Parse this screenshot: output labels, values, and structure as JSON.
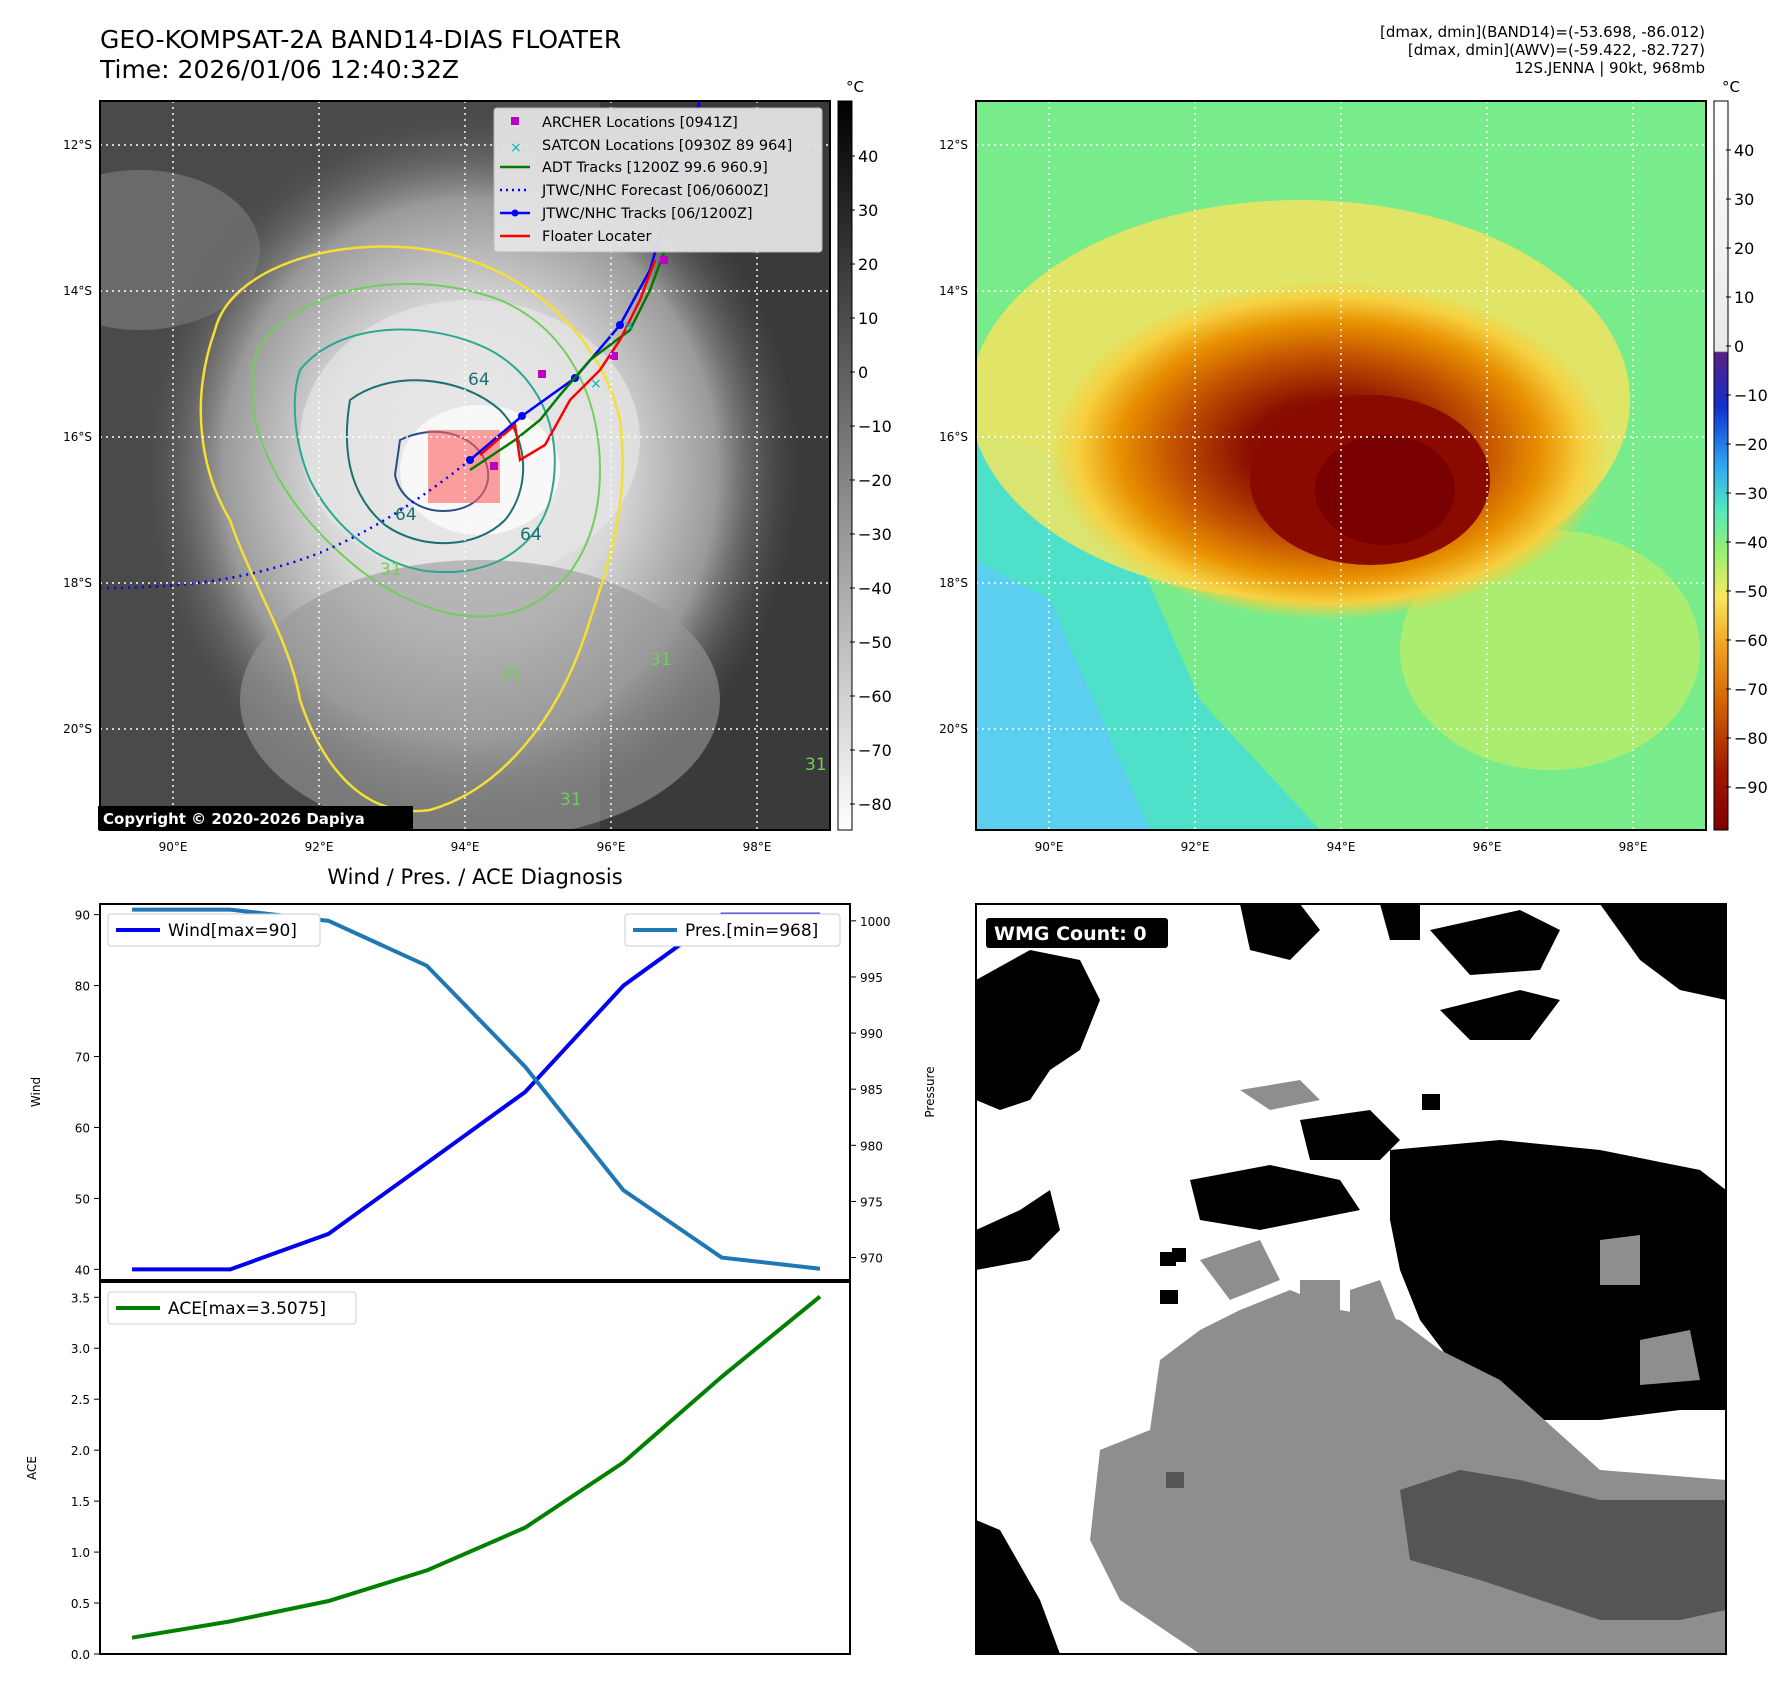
{
  "header": {
    "title_line1": "GEO-KOMPSAT-2A BAND14-DIAS FLOATER",
    "title_line2": "Time: 2026/01/06 12:40:32Z",
    "info_line1": "[dmax, dmin](BAND14)=(-53.698, -86.012)",
    "info_line2": "[dmax, dmin](AWV)=(-59.422, -82.727)",
    "info_line3": "12S.JENNA | 90kt, 968mb"
  },
  "map": {
    "lon_ticks": [
      "90°E",
      "92°E",
      "94°E",
      "96°E",
      "98°E"
    ],
    "lat_ticks": [
      "12°S",
      "14°S",
      "16°S",
      "18°S",
      "20°S"
    ],
    "copyright": "Copyright © 2020-2026 Dapiya",
    "contour_labels": [
      "64",
      "64",
      "64",
      "31",
      "31",
      "31",
      "31",
      "31"
    ],
    "legend": [
      {
        "label": "ARCHER Locations [0941Z]",
        "color": "#c000c0",
        "marker": "square"
      },
      {
        "label": "SATCON Locations [0930Z 89 964]",
        "color": "#00b8b8",
        "marker": "x"
      },
      {
        "label": "ADT Tracks [1200Z 99.6 960.9]",
        "color": "#007a00",
        "marker": "line"
      },
      {
        "label": "JTWC/NHC Forecast [06/0600Z]",
        "color": "#0000ff",
        "marker": "dotted"
      },
      {
        "label": "JTWC/NHC Tracks [06/1200Z]",
        "color": "#0000ff",
        "marker": "line-dot"
      },
      {
        "label": "Floater Locater",
        "color": "#ff0000",
        "marker": "line"
      }
    ]
  },
  "colorbar_ir": {
    "unit": "°C",
    "ticks": [
      "40",
      "30",
      "20",
      "10",
      "0",
      "−10",
      "−20",
      "−30",
      "−40",
      "−50",
      "−60",
      "−70",
      "−80"
    ]
  },
  "colorbar_awv": {
    "unit": "°C",
    "ticks": [
      "40",
      "30",
      "20",
      "10",
      "0",
      "−10",
      "−20",
      "−30",
      "−40",
      "−50",
      "−60",
      "−70",
      "−80",
      "−90"
    ]
  },
  "wmg": {
    "label": "WMG Count: 0"
  },
  "chart_data": [
    {
      "type": "line",
      "title": "Wind / Pres. / ACE Diagnosis",
      "ylabel": "Wind",
      "ylabel_right": "Pressure",
      "ylim": [
        38.5,
        91.5
      ],
      "ylim_right": [
        968.0,
        1001.5
      ],
      "yticks": [
        40,
        50,
        60,
        70,
        80,
        90
      ],
      "yticks_right": [
        970,
        975,
        980,
        985,
        990,
        995,
        1000
      ],
      "x": [
        0,
        1,
        2,
        3,
        4,
        5,
        6,
        7
      ],
      "series": [
        {
          "name": "Wind[max=90]",
          "axis": "left",
          "color": "#0000ee",
          "values": [
            40,
            40,
            45,
            55,
            65,
            80,
            90,
            90
          ]
        },
        {
          "name": "Pres.[min=968]",
          "axis": "right",
          "color": "#1f77b4",
          "values": [
            1001,
            1001,
            1000,
            996,
            987,
            976,
            970,
            969
          ]
        }
      ]
    },
    {
      "type": "line",
      "ylabel": "ACE",
      "ylim": [
        0.0,
        3.65
      ],
      "yticks": [
        "0.0",
        "0.5",
        "1.0",
        "1.5",
        "2.0",
        "2.5",
        "3.0",
        "3.5"
      ],
      "x": [
        0,
        1,
        2,
        3,
        4,
        5,
        6,
        7
      ],
      "series": [
        {
          "name": "ACE[max=3.5075]",
          "color": "#008000",
          "values": [
            0.16,
            0.32,
            0.52,
            0.82,
            1.24,
            1.88,
            2.72,
            3.5075
          ]
        }
      ]
    }
  ]
}
